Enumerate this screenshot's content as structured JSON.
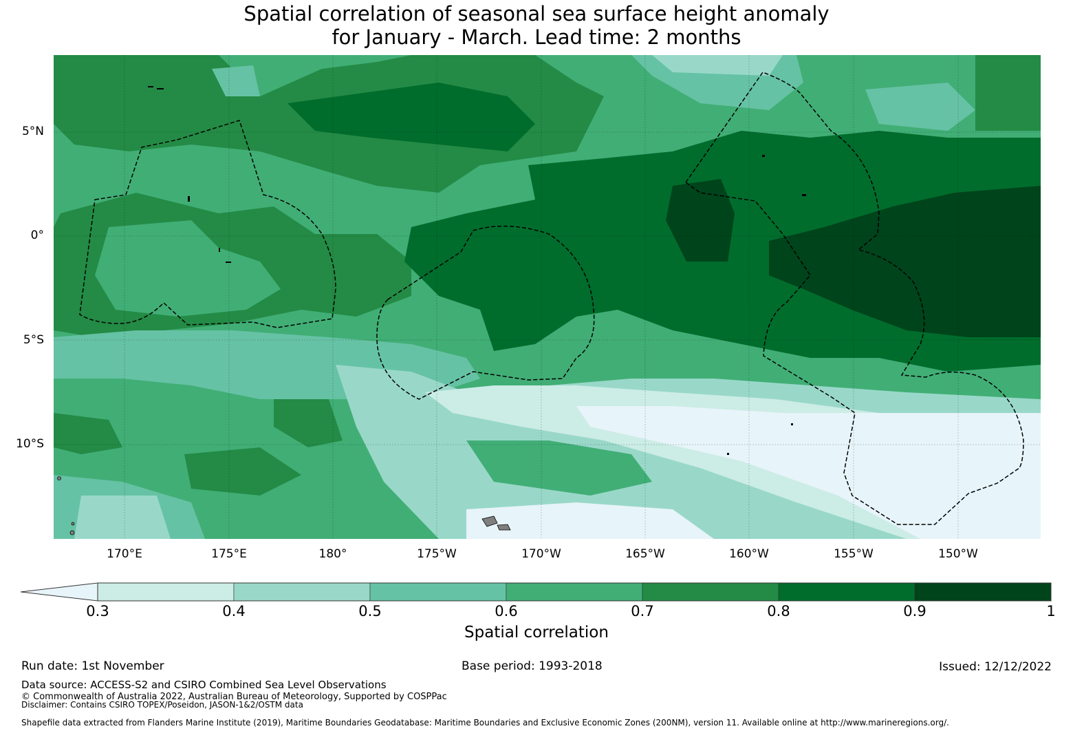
{
  "title": {
    "line1": "Spatial correlation of seasonal sea surface height anomaly",
    "line2": "for January - March. Lead time: 2 months"
  },
  "map": {
    "lat_labels": [
      "5°N",
      "0°",
      "5°S",
      "10°S"
    ],
    "lon_labels": [
      "170°E",
      "175°E",
      "180°",
      "175°W",
      "170°W",
      "165°W",
      "160°W",
      "155°W",
      "150°W"
    ],
    "colors": [
      "#e7f4f9",
      "#ccece6",
      "#99d8c9",
      "#66c2a4",
      "#41ae76",
      "#238b45",
      "#006d2c",
      "#00441b"
    ],
    "land_color": "#7f7f7f"
  },
  "colorbar": {
    "ticks": [
      "0.3",
      "0.4",
      "0.5",
      "0.6",
      "0.7",
      "0.8",
      "0.9",
      "1"
    ],
    "label": "Spatial correlation",
    "under_color": "#e7f4f9",
    "bin_colors": [
      "#ccece6",
      "#99d8c9",
      "#66c2a4",
      "#41ae76",
      "#238b45",
      "#006d2c",
      "#00441b"
    ]
  },
  "footer": {
    "run_date": "Run date: 1st November",
    "base_period": "Base period: 1993-2018",
    "issued": "Issued: 12/12/2022",
    "data_source": "Data source: ACCESS-S2 and CSIRO Combined Sea Level Observations",
    "copyright": "© Commonwealth of Australia 2022, Australian Bureau of Meteorology, Supported by COSPPac",
    "disclaimer": "Disclaimer: Contains CSIRO TOPEX/Poseidon, JASON-1&2/OSTM data",
    "shapefile": "Shapefile data extracted from Flanders Marine Institute (2019), Maritime Boundaries Geodatabase: Maritime Boundaries and Exclusive Economic Zones (200NM), version 11. Available online at http://www.marineregions.org/."
  }
}
